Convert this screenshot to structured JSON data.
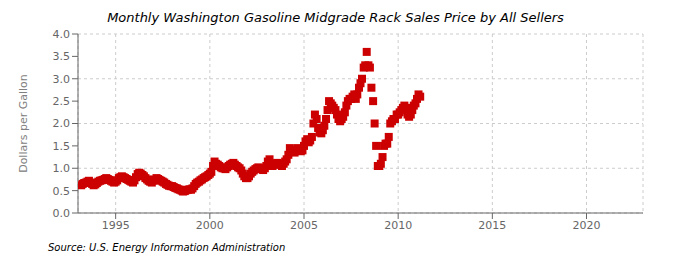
{
  "chart_data": {
    "type": "scatter",
    "title": "Monthly Washington Gasoline Midgrade Rack Sales Price by All Sellers",
    "ylabel": "Dollars per Gallon",
    "annotations": [
      "Source: U.S. Energy Information Administration"
    ],
    "color": "#cc0000",
    "marker": "square",
    "grid": true,
    "xlim": [
      1993.0,
      2023.0
    ],
    "ylim": [
      0.0,
      4.0
    ],
    "xticks": [
      1995,
      2000,
      2005,
      2010,
      2015,
      2020
    ],
    "yticks": [
      {
        "value": 0,
        "label": "0.0"
      },
      0.5,
      {
        "value": 1,
        "label": "1.0"
      },
      1.5,
      {
        "value": 2,
        "label": "2.0"
      },
      2.5,
      {
        "value": 3,
        "label": "3.0"
      },
      3.5,
      {
        "value": 4,
        "label": "4.0"
      }
    ],
    "x": [
      1993.17,
      1993.25,
      1993.33,
      1993.42,
      1993.5,
      1993.58,
      1993.67,
      1993.75,
      1993.83,
      1993.92,
      1994.0,
      1994.08,
      1994.17,
      1994.25,
      1994.33,
      1994.42,
      1994.5,
      1994.58,
      1994.67,
      1994.75,
      1994.83,
      1994.92,
      1995.0,
      1995.08,
      1995.17,
      1995.25,
      1995.33,
      1995.42,
      1995.5,
      1995.58,
      1995.67,
      1995.75,
      1995.83,
      1995.92,
      1996.0,
      1996.08,
      1996.17,
      1996.25,
      1996.33,
      1996.42,
      1996.5,
      1996.58,
      1996.67,
      1996.75,
      1996.83,
      1996.92,
      1997.0,
      1997.08,
      1997.17,
      1997.25,
      1997.33,
      1997.42,
      1997.5,
      1997.58,
      1997.67,
      1997.75,
      1997.83,
      1997.92,
      1998.0,
      1998.08,
      1998.17,
      1998.25,
      1998.33,
      1998.42,
      1998.5,
      1998.58,
      1998.67,
      1998.75,
      1998.83,
      1998.92,
      1999.0,
      1999.08,
      1999.17,
      1999.25,
      1999.33,
      1999.42,
      1999.5,
      1999.58,
      1999.67,
      1999.75,
      1999.83,
      1999.92,
      2000.0,
      2000.08,
      2000.17,
      2000.25,
      2000.33,
      2000.42,
      2000.5,
      2000.58,
      2000.67,
      2000.75,
      2000.83,
      2000.92,
      2001.0,
      2001.08,
      2001.17,
      2001.25,
      2001.33,
      2001.42,
      2001.5,
      2001.58,
      2001.67,
      2001.75,
      2001.83,
      2001.92,
      2002.0,
      2002.08,
      2002.17,
      2002.25,
      2002.33,
      2002.42,
      2002.5,
      2002.58,
      2002.67,
      2002.75,
      2002.83,
      2002.92,
      2003.0,
      2003.08,
      2003.17,
      2003.25,
      2003.33,
      2003.42,
      2003.5,
      2003.58,
      2003.67,
      2003.75,
      2003.83,
      2003.92,
      2004.0,
      2004.08,
      2004.17,
      2004.25,
      2004.33,
      2004.42,
      2004.5,
      2004.58,
      2004.67,
      2004.75,
      2004.83,
      2004.92,
      2005.0,
      2005.08,
      2005.17,
      2005.25,
      2005.33,
      2005.42,
      2005.5,
      2005.58,
      2005.67,
      2005.75,
      2005.83,
      2005.92,
      2006.0,
      2006.08,
      2006.17,
      2006.25,
      2006.33,
      2006.42,
      2006.5,
      2006.58,
      2006.67,
      2006.75,
      2006.83,
      2006.92,
      2007.0,
      2007.08,
      2007.17,
      2007.25,
      2007.33,
      2007.42,
      2007.5,
      2007.58,
      2007.67,
      2007.75,
      2007.83,
      2007.92,
      2008.0,
      2008.08,
      2008.17,
      2008.25,
      2008.33,
      2008.42,
      2008.5,
      2008.58,
      2008.67,
      2008.75,
      2008.83,
      2008.92,
      2009.0,
      2009.08,
      2009.17,
      2009.25,
      2009.33,
      2009.42,
      2009.5,
      2009.58,
      2009.67,
      2009.75,
      2009.83,
      2009.92,
      2010.0,
      2010.08,
      2010.17,
      2010.25,
      2010.33,
      2010.42,
      2010.5,
      2010.58,
      2010.67,
      2010.75,
      2010.83,
      2010.92,
      2011.0,
      2011.08,
      2011.17
    ],
    "values": [
      0.62,
      0.65,
      0.67,
      0.68,
      0.7,
      0.72,
      0.68,
      0.65,
      0.62,
      0.64,
      0.67,
      0.7,
      0.72,
      0.73,
      0.74,
      0.76,
      0.78,
      0.76,
      0.74,
      0.72,
      0.7,
      0.68,
      0.7,
      0.73,
      0.78,
      0.8,
      0.82,
      0.8,
      0.78,
      0.76,
      0.74,
      0.72,
      0.7,
      0.68,
      0.73,
      0.8,
      0.87,
      0.9,
      0.88,
      0.85,
      0.82,
      0.78,
      0.75,
      0.72,
      0.7,
      0.68,
      0.72,
      0.75,
      0.78,
      0.76,
      0.74,
      0.72,
      0.7,
      0.68,
      0.65,
      0.63,
      0.61,
      0.6,
      0.6,
      0.58,
      0.56,
      0.55,
      0.53,
      0.52,
      0.5,
      0.48,
      0.49,
      0.51,
      0.52,
      0.53,
      0.52,
      0.55,
      0.6,
      0.65,
      0.68,
      0.7,
      0.73,
      0.75,
      0.78,
      0.8,
      0.82,
      0.85,
      0.88,
      0.92,
      1.05,
      1.15,
      1.1,
      1.08,
      1.05,
      1.02,
      1.0,
      1.0,
      0.98,
      1.02,
      1.05,
      1.08,
      1.1,
      1.12,
      1.08,
      1.05,
      1.02,
      1.0,
      0.95,
      0.88,
      0.82,
      0.78,
      0.78,
      0.82,
      0.88,
      0.92,
      0.95,
      0.98,
      1.0,
      1.02,
      1.0,
      0.98,
      0.96,
      1.0,
      1.05,
      1.15,
      1.2,
      1.1,
      1.05,
      1.08,
      1.1,
      1.12,
      1.1,
      1.08,
      1.05,
      1.1,
      1.15,
      1.2,
      1.3,
      1.45,
      1.4,
      1.38,
      1.35,
      1.4,
      1.45,
      1.42,
      1.38,
      1.4,
      1.5,
      1.6,
      1.65,
      1.58,
      1.62,
      1.7,
      2.0,
      2.2,
      2.1,
      1.9,
      1.8,
      1.78,
      1.85,
      1.95,
      2.1,
      2.3,
      2.5,
      2.45,
      2.4,
      2.35,
      2.3,
      2.2,
      2.1,
      2.05,
      2.1,
      2.15,
      2.25,
      2.4,
      2.5,
      2.55,
      2.55,
      2.6,
      2.65,
      2.55,
      2.65,
      2.8,
      2.9,
      3.0,
      3.25,
      3.3,
      3.6,
      3.3,
      3.25,
      2.8,
      2.5,
      2.0,
      1.5,
      1.05,
      1.05,
      1.1,
      1.25,
      1.5,
      1.55,
      1.55,
      1.7,
      2.0,
      2.05,
      2.1,
      2.1,
      2.2,
      2.2,
      2.25,
      2.3,
      2.35,
      2.4,
      2.35,
      2.2,
      2.15,
      2.2,
      2.3,
      2.4,
      2.45,
      2.55,
      2.65,
      2.6
    ]
  }
}
